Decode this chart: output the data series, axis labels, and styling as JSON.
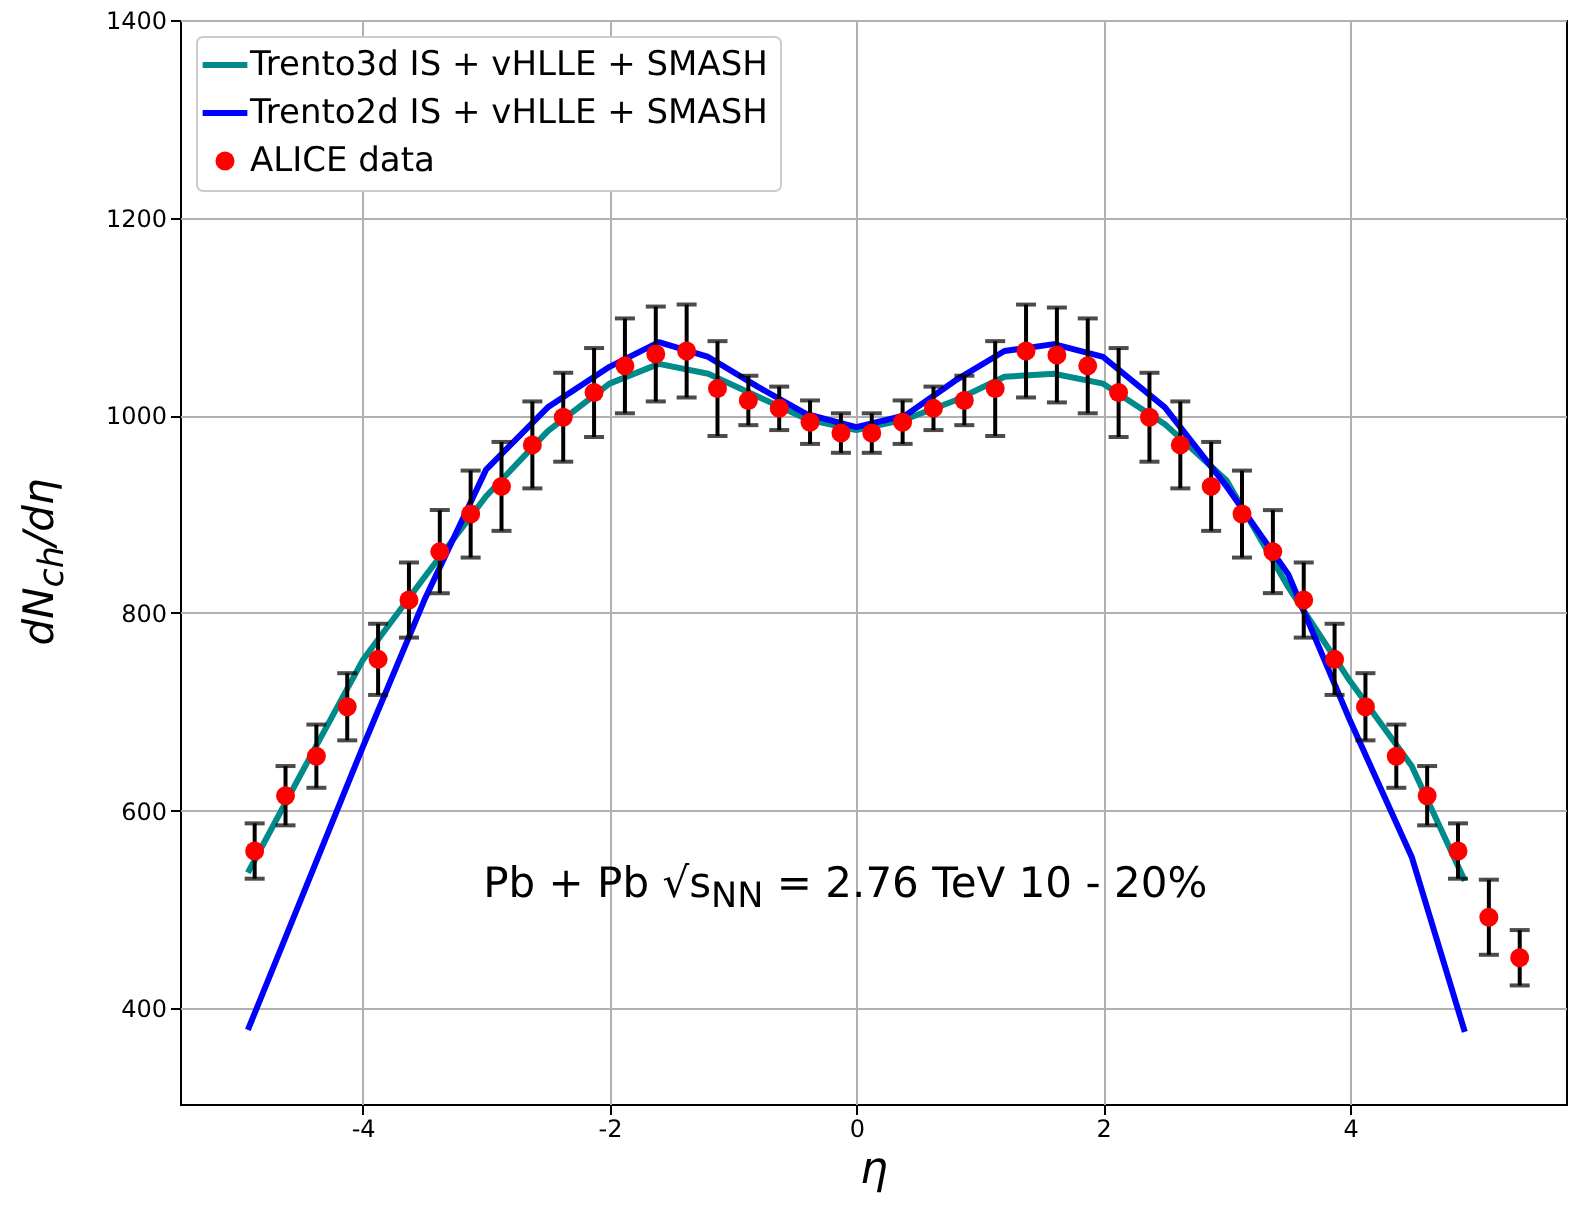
{
  "chart_data": {
    "type": "line",
    "xlabel": "η",
    "ylabel": "dN$_{ch}$/dη",
    "annotations": [
      "Pb + Pb √s$_{NN}$ = 2.76 TeV 10 - 20%"
    ],
    "xlim": [
      -5.48,
      5.75
    ],
    "xticks": [
      -4,
      -2,
      0,
      2,
      4
    ],
    "ylim": [
      303,
      1400
    ],
    "yticks": [
      400,
      600,
      800,
      1000,
      1200,
      1400
    ],
    "grid": true,
    "legend": "top left",
    "series": [
      {
        "name": "Trento3d IS + vHLLE + SMASH",
        "color": "#008b8b",
        "marker": "none",
        "x": [
          -4.93,
          -4.5,
          -4.0,
          -3.5,
          -3.0,
          -2.5,
          -2.0,
          -1.6,
          -1.2,
          -0.8,
          -0.4,
          0,
          0.4,
          0.8,
          1.2,
          1.6,
          2.0,
          2.5,
          3.0,
          3.5,
          4.0,
          4.5,
          4.93
        ],
        "values": [
          537,
          637,
          752,
          836,
          918,
          984,
          1032,
          1052,
          1042,
          1019,
          996,
          985,
          996,
          1015,
          1039,
          1042,
          1032,
          991,
          934,
          826,
          731,
          645,
          529
        ]
      },
      {
        "name": "Trento2d IS + vHLLE + SMASH",
        "color": "#0000ff",
        "marker": "none",
        "x": [
          -4.93,
          -4.5,
          -4.0,
          -3.5,
          -3.0,
          -2.5,
          -2.0,
          -1.6,
          -1.2,
          -0.8,
          -0.4,
          0,
          0.4,
          0.8,
          1.2,
          1.6,
          2.0,
          2.5,
          3.0,
          3.5,
          4.0,
          4.5,
          4.93
        ],
        "values": [
          378,
          510,
          664,
          813,
          945,
          1008,
          1049,
          1074,
          1059,
          1029,
          1001,
          988,
          1000,
          1035,
          1065,
          1072,
          1059,
          1008,
          928,
          839,
          691,
          553,
          376
        ]
      },
      {
        "name": "ALICE data",
        "type": "scatter",
        "color": "#ff0000",
        "marker": "circle",
        "x": [
          -4.875,
          -4.625,
          -4.375,
          -4.125,
          -3.875,
          -3.625,
          -3.375,
          -3.125,
          -2.875,
          -2.625,
          -2.375,
          -2.125,
          -1.875,
          -1.625,
          -1.375,
          -1.125,
          -0.875,
          -0.625,
          -0.375,
          -0.125,
          0.125,
          0.375,
          0.625,
          0.875,
          1.125,
          1.375,
          1.625,
          1.875,
          2.125,
          2.375,
          2.625,
          2.875,
          3.125,
          3.375,
          3.625,
          3.875,
          4.125,
          4.375,
          4.625,
          4.875,
          5.125,
          5.375
        ],
        "values": [
          559,
          615,
          655,
          705,
          753,
          813,
          862,
          900,
          928,
          970,
          998,
          1023,
          1050,
          1062,
          1065,
          1027,
          1015,
          1007,
          993,
          982,
          982,
          993,
          1007,
          1015,
          1027,
          1065,
          1061,
          1050,
          1023,
          998,
          970,
          928,
          900,
          862,
          813,
          753,
          705,
          655,
          615,
          559,
          492,
          451
        ],
        "errors": [
          28,
          30,
          32,
          34,
          36,
          38,
          42,
          44,
          45,
          44,
          45,
          45,
          48,
          48,
          47,
          48,
          25,
          22,
          22,
          20,
          20,
          22,
          22,
          25,
          48,
          47,
          48,
          48,
          45,
          45,
          44,
          45,
          44,
          42,
          38,
          36,
          34,
          32,
          30,
          28,
          38,
          28
        ]
      }
    ]
  }
}
